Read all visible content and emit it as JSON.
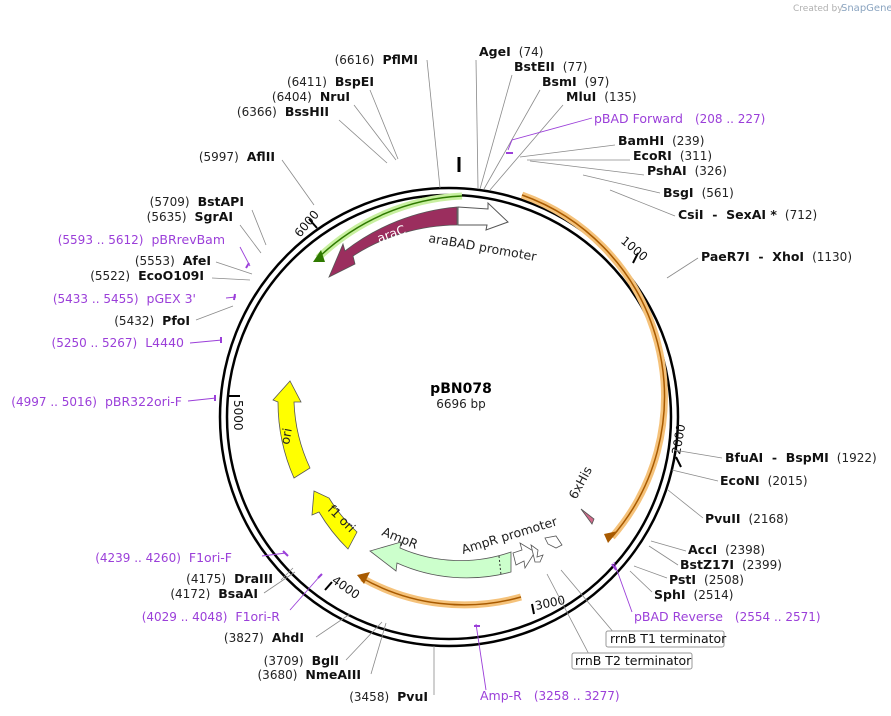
{
  "credit": {
    "prefix": "Created by",
    "brand": "SnapGene"
  },
  "plasmid": {
    "name": "pBN078",
    "length": "6696 bp",
    "total_bp": 6696
  },
  "tick_labels": [
    {
      "text": "1000",
      "bp": 1000
    },
    {
      "text": "2000",
      "bp": 2000
    },
    {
      "text": "3000",
      "bp": 3000
    },
    {
      "text": "4000",
      "bp": 4000
    },
    {
      "text": "5000",
      "bp": 5000
    },
    {
      "text": "6000",
      "bp": 6000
    }
  ],
  "features": [
    {
      "name": "araC",
      "label": "araC",
      "color": "#9b2e5e"
    },
    {
      "name": "araBAD promoter",
      "label": "araBAD promoter",
      "color": "#ffffff"
    },
    {
      "name": "ori",
      "label": "ori",
      "color": "#ffff00"
    },
    {
      "name": "f1 ori",
      "label": "f1 ori",
      "color": "#ffff00"
    },
    {
      "name": "AmpR",
      "label": "AmpR",
      "color": "#ccffcc"
    },
    {
      "name": "AmpR promoter",
      "label": "AmpR promoter",
      "color": "#ffffff"
    },
    {
      "name": "6xHis",
      "label": "6xHis",
      "color": "#d06a8a"
    }
  ],
  "sites": [
    {
      "num": "(74)",
      "name": "AgeI"
    },
    {
      "num": "(77)",
      "name": "BstEII"
    },
    {
      "num": "(97)",
      "name": "BsmI"
    },
    {
      "num": "(135)",
      "name": "MluI"
    },
    {
      "num": "(239)",
      "name": "BamHI"
    },
    {
      "num": "(311)",
      "name": "EcoRI"
    },
    {
      "num": "(326)",
      "name": "PshAI"
    },
    {
      "num": "(561)",
      "name": "BsgI"
    },
    {
      "num": "(712)",
      "name": "CsiI  -  SexAI *"
    },
    {
      "num": "(1130)",
      "name": "PaeR7I  -  XhoI"
    },
    {
      "num": "(1922)",
      "name": "BfuAI  -  BspMI"
    },
    {
      "num": "(2015)",
      "name": "EcoNI"
    },
    {
      "num": "(2168)",
      "name": "PvuII"
    },
    {
      "num": "(2398)",
      "name": "AccI"
    },
    {
      "num": "(2399)",
      "name": "BstZ17I"
    },
    {
      "num": "(2508)",
      "name": "PstI"
    },
    {
      "num": "(2514)",
      "name": "SphI"
    },
    {
      "num": "(6616)",
      "name": "PflMI"
    },
    {
      "num": "(6411)",
      "name": "BspEI"
    },
    {
      "num": "(6404)",
      "name": "NruI"
    },
    {
      "num": "(6366)",
      "name": "BssHII"
    },
    {
      "num": "(5997)",
      "name": "AflII"
    },
    {
      "num": "(5709)",
      "name": "BstAPI"
    },
    {
      "num": "(5635)",
      "name": "SgrAI"
    },
    {
      "num": "(5553)",
      "name": "AfeI"
    },
    {
      "num": "(5522)",
      "name": "EcoO109I"
    },
    {
      "num": "(5432)",
      "name": "PfoI"
    },
    {
      "num": "(4175)",
      "name": "DraIII"
    },
    {
      "num": "(4172)",
      "name": "BsaAI"
    },
    {
      "num": "(3827)",
      "name": "AhdI"
    },
    {
      "num": "(3709)",
      "name": "BglI"
    },
    {
      "num": "(3680)",
      "name": "NmeAIII"
    },
    {
      "num": "(3458)",
      "name": "PvuI"
    }
  ],
  "primers": [
    {
      "name": "pBAD Forward",
      "range": "(208 .. 227)"
    },
    {
      "name": "pBAD Reverse",
      "range": "(2554 .. 2571)"
    },
    {
      "name": "Amp-R",
      "range": "(3258 .. 3277)"
    },
    {
      "name": "F1ori-R",
      "range": "(4029 .. 4048)"
    },
    {
      "name": "F1ori-F",
      "range": "(4239 .. 4260)"
    },
    {
      "name": "pBR322ori-F",
      "range": "(4997 .. 5016)"
    },
    {
      "name": "L4440",
      "range": "(5250 .. 5267)"
    },
    {
      "name": "pGEX 3'",
      "range": "(5433 .. 5455)"
    },
    {
      "name": "pBRrevBam",
      "range": "(5593 .. 5612)"
    }
  ],
  "terminators": [
    {
      "name": "rrnB T1 terminator"
    },
    {
      "name": "rrnB T2 terminator"
    }
  ],
  "colors": {
    "backbone": "#000000",
    "primer": "#9b3fd9",
    "orf_arc": "#f5c27a",
    "orf_arc_line": "#a85a00",
    "arac_arc": "#c8f0a0",
    "arac_arc_line": "#2f7a00"
  }
}
